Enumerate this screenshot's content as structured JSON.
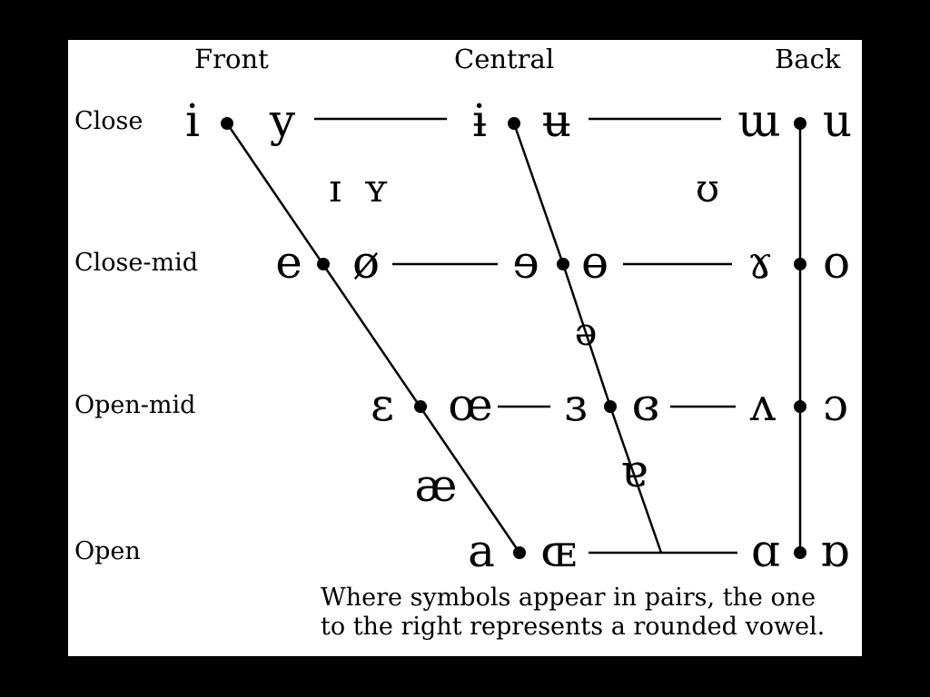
{
  "colors": {
    "background": "#000000",
    "panel": "#ffffff",
    "ink": "#000000"
  },
  "columns": {
    "front": "Front",
    "central": "Central",
    "back": "Back"
  },
  "rows": {
    "close": "Close",
    "close_mid": "Close-mid",
    "open_mid": "Open-mid",
    "open": "Open"
  },
  "vowels": {
    "close": {
      "front_unrounded": "i",
      "front_rounded": "y",
      "central_unrounded": "ɨ",
      "central_rounded": "ʉ",
      "back_unrounded": "ɯ",
      "back_rounded": "u"
    },
    "near_close": {
      "front_unrounded": "ɪ",
      "front_rounded": "ʏ",
      "back_rounded": "ʊ"
    },
    "close_mid": {
      "front_unrounded": "e",
      "front_rounded": "ø",
      "central_unrounded": "ɘ",
      "central_rounded": "ɵ",
      "back_unrounded": "ɤ",
      "back_rounded": "o"
    },
    "mid": {
      "central": "ə"
    },
    "open_mid": {
      "front_unrounded": "ɛ",
      "front_rounded": "œ",
      "central_unrounded": "ɜ",
      "central_rounded": "ɞ",
      "back_unrounded": "ʌ",
      "back_rounded": "ɔ"
    },
    "near_open": {
      "front": "æ",
      "central": "ɐ"
    },
    "open": {
      "front_unrounded": "a",
      "front_rounded": "ɶ",
      "back_unrounded": "ɑ",
      "back_rounded": "ɒ"
    }
  },
  "note": {
    "line1": "Where symbols appear in pairs, the one",
    "line2": "to the right represents a rounded vowel."
  }
}
